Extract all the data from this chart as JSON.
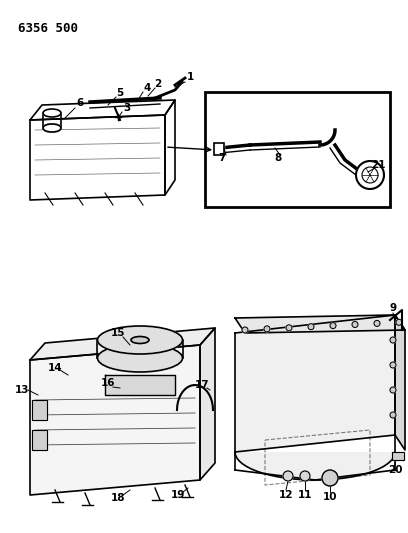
{
  "title_code": "6356 500",
  "background_color": "#ffffff",
  "line_color": "#000000",
  "fig_width": 4.08,
  "fig_height": 5.33,
  "dpi": 100,
  "parts": {
    "top_left_label": "6356 500",
    "callout_numbers_top": [
      1,
      2,
      3,
      4,
      5,
      6,
      7,
      8,
      21
    ],
    "callout_numbers_bottom_left": [
      13,
      14,
      15,
      16,
      17,
      18,
      19
    ],
    "callout_numbers_bottom_right": [
      9,
      10,
      11,
      12,
      20
    ]
  }
}
